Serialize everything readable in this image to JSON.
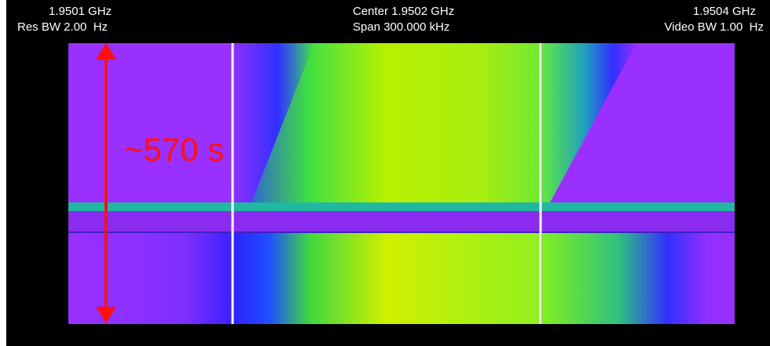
{
  "header": {
    "left_freq": "1.9501 GHz",
    "res_bw": "Res BW 2.00  Hz",
    "center": "Center 1.9502 GHz",
    "span": "Span 300.000 kHz",
    "right_freq": "1.9504 GHz",
    "video_bw": "Video BW 1.00  Hz"
  },
  "annotation": {
    "label": "~570 s"
  }
}
